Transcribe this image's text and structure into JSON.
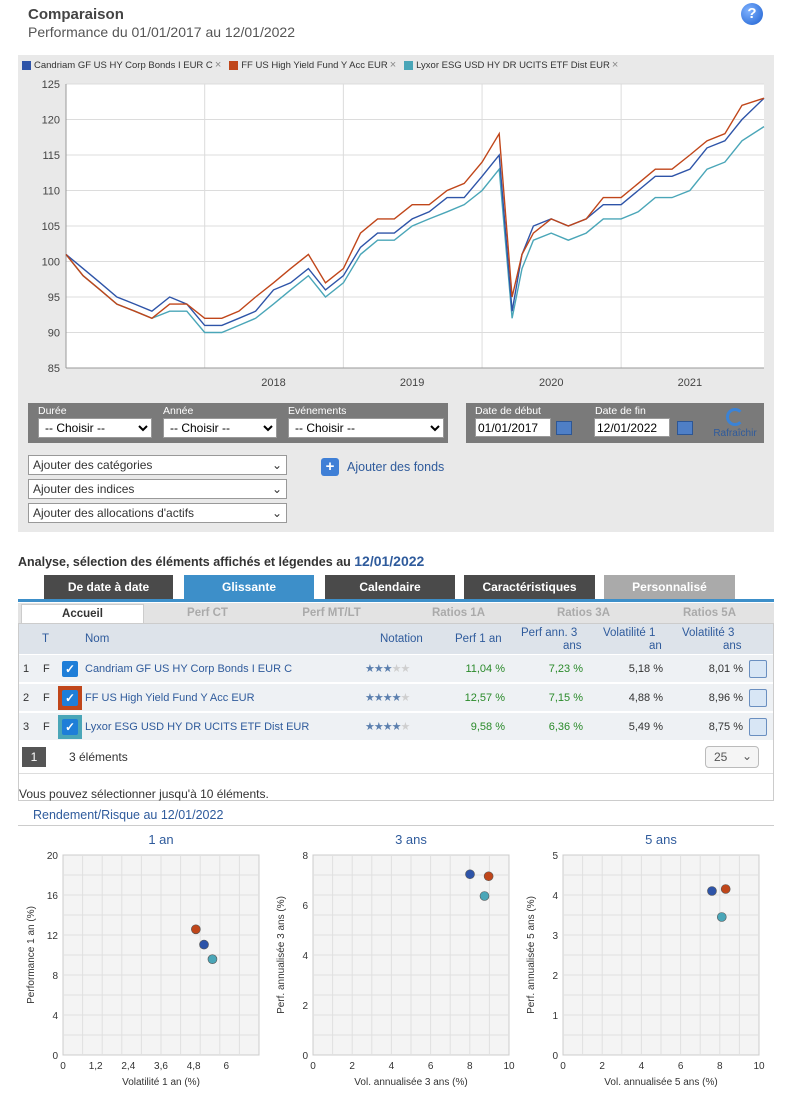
{
  "header": {
    "title": "Comparaison",
    "subtitle": "Performance du 01/01/2017 au 12/01/2022",
    "help_icon": "?"
  },
  "legend": [
    {
      "name": "Candriam GF US HY Corp Bonds I EUR C",
      "color": "#2e54a8"
    },
    {
      "name": "FF US High Yield Fund Y Acc EUR",
      "color": "#c0461a"
    },
    {
      "name": "Lyxor ESG USD HY DR UCITS ETF Dist EUR",
      "color": "#4aa6b8"
    }
  ],
  "legend_close": "×",
  "chart_data": {
    "type": "line",
    "x": [
      "2017-01-01",
      "2017-02-15",
      "2017-04-01",
      "2017-05-15",
      "2017-07-01",
      "2017-08-15",
      "2017-10-01",
      "2017-11-15",
      "2018-01-01",
      "2018-02-15",
      "2018-04-01",
      "2018-05-15",
      "2018-07-01",
      "2018-08-15",
      "2018-10-01",
      "2018-11-15",
      "2019-01-01",
      "2019-02-15",
      "2019-04-01",
      "2019-05-15",
      "2019-07-01",
      "2019-08-15",
      "2019-10-01",
      "2019-11-15",
      "2020-01-01",
      "2020-02-15",
      "2020-03-20",
      "2020-04-15",
      "2020-05-15",
      "2020-07-01",
      "2020-08-15",
      "2020-10-01",
      "2020-11-15",
      "2021-01-01",
      "2021-02-15",
      "2021-04-01",
      "2021-05-15",
      "2021-07-01",
      "2021-08-15",
      "2021-10-01",
      "2021-11-15",
      "2022-01-12"
    ],
    "series": [
      {
        "name": "Candriam GF US HY Corp Bonds I EUR C",
        "color": "#2e54a8",
        "values": [
          101,
          99,
          97,
          95,
          94,
          93,
          95,
          94,
          91,
          91,
          92,
          93,
          96,
          97,
          99,
          96,
          98,
          102,
          104,
          104,
          106,
          107,
          109,
          109,
          112,
          115,
          93,
          101,
          105,
          106,
          105,
          106,
          108,
          108,
          110,
          112,
          112,
          113,
          116,
          117,
          120,
          123
        ]
      },
      {
        "name": "FF US High Yield Fund Y Acc EUR",
        "color": "#c0461a",
        "values": [
          101,
          98,
          96,
          94,
          93,
          92,
          94,
          94,
          92,
          92,
          93,
          95,
          97,
          99,
          101,
          97,
          99,
          104,
          106,
          106,
          108,
          108,
          110,
          111,
          114,
          118,
          95,
          101,
          104,
          106,
          105,
          106,
          109,
          109,
          111,
          113,
          113,
          115,
          117,
          118,
          122,
          123
        ]
      },
      {
        "name": "Lyxor ESG USD HY DR UCITS ETF Dist EUR",
        "color": "#4aa6b8",
        "values": [
          101,
          98,
          96,
          94,
          93,
          92,
          93,
          93,
          90,
          90,
          91,
          92,
          94,
          96,
          98,
          95,
          97,
          101,
          103,
          103,
          105,
          106,
          107,
          108,
          110,
          113,
          92,
          99,
          103,
          104,
          103,
          104,
          106,
          106,
          107,
          109,
          109,
          110,
          113,
          114,
          117,
          119
        ]
      }
    ],
    "ylim": [
      85,
      125
    ],
    "yticks": [
      85,
      90,
      95,
      100,
      105,
      110,
      115,
      120,
      125
    ],
    "xticks": [
      "2018",
      "2019",
      "2020",
      "2021"
    ],
    "grid": true
  },
  "controls": {
    "duree_label": "Durée",
    "annee_label": "Année",
    "evenements_label": "Evénements",
    "choisir": "-- Choisir --",
    "date_debut_label": "Date de début",
    "date_fin_label": "Date de fin",
    "date_debut": "01/01/2017",
    "date_fin": "12/01/2022",
    "refresh_label": "Rafraîchir",
    "add_categories": "Ajouter des catégories",
    "add_indices": "Ajouter des indices",
    "add_allocations": "Ajouter des allocations d'actifs",
    "add_funds": "Ajouter des fonds"
  },
  "analysis": {
    "title": "Analyse, sélection des éléments affichés et légendes au ",
    "date": "12/01/2022",
    "main_tabs": [
      {
        "label": "De date à date",
        "color": "#4a4a4a"
      },
      {
        "label": "Glissante",
        "color": "#3d8fc9"
      },
      {
        "label": "Calendaire",
        "color": "#4a4a4a"
      },
      {
        "label": "Caractéristiques",
        "color": "#4a4a4a"
      },
      {
        "label": "Personnalisé",
        "color": "#aaaaaa"
      }
    ],
    "sub_tabs": [
      "Accueil",
      "Perf CT",
      "Perf MT/LT",
      "Ratios 1A",
      "Ratios 3A",
      "Ratios 5A"
    ],
    "headers": {
      "t": "T",
      "nom": "Nom",
      "notation": "Notation",
      "perf1": "Perf 1 an",
      "perf3a": "Perf ann. 3",
      "perf3b": "ans",
      "vol1a": "Volatilité 1",
      "vol1b": "an",
      "vol3a": "Volatilité 3",
      "vol3b": "ans"
    },
    "rows": [
      {
        "idx": "1",
        "t": "F",
        "name": "Candriam GF US HY Corp Bonds I EUR C",
        "color": "#1e7ed8",
        "stars": 3,
        "perf1": "11,04 %",
        "perf3": "7,23 %",
        "vol1": "5,18 %",
        "vol3": "8,01 %"
      },
      {
        "idx": "2",
        "t": "F",
        "name": "FF US High Yield Fund Y Acc EUR",
        "color": "#1e7ed8",
        "border": "#c0461a",
        "stars": 4,
        "perf1": "12,57 %",
        "perf3": "7,15 %",
        "vol1": "4,88 %",
        "vol3": "8,96 %"
      },
      {
        "idx": "3",
        "t": "F",
        "name": "Lyxor ESG USD HY DR UCITS ETF Dist EUR",
        "color": "#1e7ed8",
        "border": "#4aa6b8",
        "stars": 4,
        "perf1": "9,58 %",
        "perf3": "6,36 %",
        "vol1": "5,49 %",
        "vol3": "8,75 %"
      }
    ],
    "check_mark": "✓",
    "page": "1",
    "count": "3 éléments",
    "per_page": "25",
    "note": "Vous pouvez sélectionner jusqu'à 10 éléments."
  },
  "risk": {
    "title": "Rendement/Risque au 12/01/2022",
    "charts": [
      {
        "title": "1 an",
        "xlabel": "Volatilité 1 an (%)",
        "ylabel": "Performance 1 an (%)",
        "xlim": [
          0,
          7.2
        ],
        "ylim": [
          0,
          20
        ],
        "xticks": [
          "0",
          "1,2",
          "2,4",
          "3,6",
          "4,8",
          "6"
        ],
        "xtick_vals": [
          0,
          1.2,
          2.4,
          3.6,
          4.8,
          6
        ],
        "yticks": [
          "0",
          "4",
          "8",
          "12",
          "16",
          "20"
        ],
        "ytick_vals": [
          0,
          4,
          8,
          12,
          16,
          20
        ],
        "points": [
          {
            "x": 5.18,
            "y": 11.04,
            "color": "#2e54a8"
          },
          {
            "x": 4.88,
            "y": 12.57,
            "color": "#c0461a"
          },
          {
            "x": 5.49,
            "y": 9.58,
            "color": "#4aa6b8"
          }
        ]
      },
      {
        "title": "3 ans",
        "xlabel": "Vol. annualisée 3 ans (%)",
        "ylabel": "Perf. annualisée 3 ans (%)",
        "xlim": [
          0,
          10
        ],
        "ylim": [
          0,
          8
        ],
        "xticks": [
          "0",
          "2",
          "4",
          "6",
          "8",
          "10"
        ],
        "xtick_vals": [
          0,
          2,
          4,
          6,
          8,
          10
        ],
        "yticks": [
          "0",
          "2",
          "4",
          "6",
          "8"
        ],
        "ytick_vals": [
          0,
          2,
          4,
          6,
          8
        ],
        "points": [
          {
            "x": 8.01,
            "y": 7.23,
            "color": "#2e54a8"
          },
          {
            "x": 8.96,
            "y": 7.15,
            "color": "#c0461a"
          },
          {
            "x": 8.75,
            "y": 6.36,
            "color": "#4aa6b8"
          }
        ]
      },
      {
        "title": "5 ans",
        "xlabel": "Vol. annualisée 5 ans (%)",
        "ylabel": "Perf. annualisée 5 ans (%)",
        "xlim": [
          0,
          10
        ],
        "ylim": [
          0,
          5
        ],
        "xticks": [
          "0",
          "2",
          "4",
          "6",
          "8",
          "10"
        ],
        "xtick_vals": [
          0,
          2,
          4,
          6,
          8,
          10
        ],
        "yticks": [
          "0",
          "1",
          "2",
          "3",
          "4",
          "5"
        ],
        "ytick_vals": [
          0,
          1,
          2,
          3,
          4,
          5
        ],
        "points": [
          {
            "x": 7.6,
            "y": 4.1,
            "color": "#2e54a8"
          },
          {
            "x": 8.3,
            "y": 4.15,
            "color": "#c0461a"
          },
          {
            "x": 8.1,
            "y": 3.45,
            "color": "#4aa6b8"
          }
        ]
      }
    ]
  }
}
